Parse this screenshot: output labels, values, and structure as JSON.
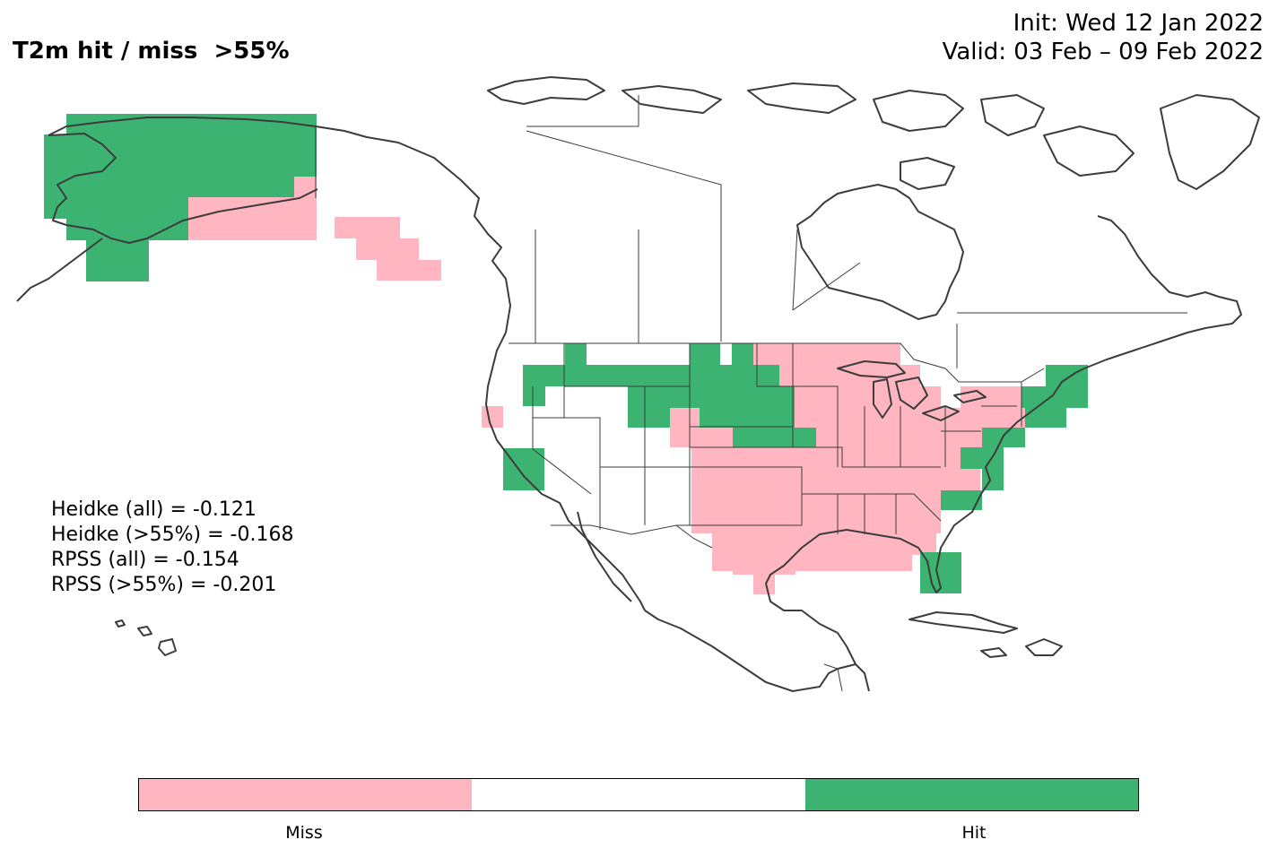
{
  "title": "T2m hit / miss  >55%",
  "init_label": "Init: Wed 12 Jan 2022",
  "valid_label": "Valid: 03 Feb – 09 Feb 2022",
  "scores": {
    "heidke_all": "Heidke (all) = -0.121",
    "heidke_55": "Heidke (>55%) = -0.168",
    "rpss_all": "RPSS (all) = -0.154",
    "rpss_55": "RPSS (>55%) = -0.201"
  },
  "legend": {
    "categories": [
      {
        "label": "Miss",
        "color": "#ffb6c1"
      },
      {
        "label": "",
        "color": "#ffffff"
      },
      {
        "label": "Hit",
        "color": "#3cb371"
      }
    ]
  },
  "colors": {
    "miss": "#ffb6c1",
    "hit": "#3cb371",
    "coast": "#3c3c3c"
  }
}
